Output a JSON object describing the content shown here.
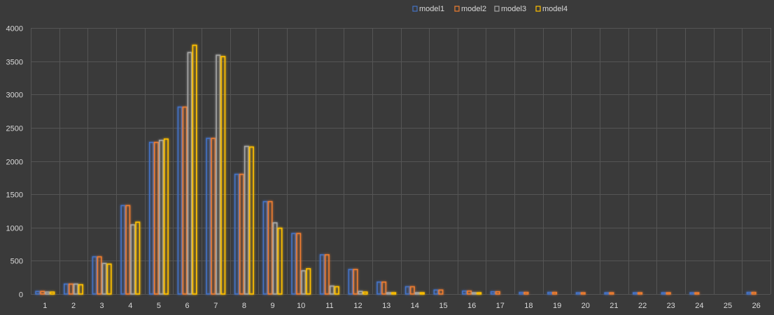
{
  "chart_data": {
    "type": "bar",
    "categories": [
      "1",
      "2",
      "3",
      "4",
      "5",
      "6",
      "7",
      "8",
      "9",
      "10",
      "11",
      "12",
      "13",
      "14",
      "15",
      "16",
      "17",
      "18",
      "19",
      "20",
      "21",
      "22",
      "23",
      "24",
      "25",
      "26"
    ],
    "ylim": [
      0,
      4000
    ],
    "yticks": [
      0,
      500,
      1000,
      1500,
      2000,
      2500,
      3000,
      3500,
      4000
    ],
    "grid": true,
    "legend_position": "top-center",
    "series": [
      {
        "name": "model1",
        "color": "#4472c4",
        "values": [
          40,
          150,
          560,
          1330,
          2280,
          2810,
          2340,
          1800,
          1390,
          910,
          590,
          370,
          180,
          110,
          60,
          45,
          35,
          25,
          25,
          20,
          20,
          20,
          20,
          20,
          0,
          25
        ]
      },
      {
        "name": "model2",
        "color": "#ed7d31",
        "values": [
          40,
          150,
          560,
          1330,
          2280,
          2810,
          2340,
          1800,
          1390,
          910,
          590,
          370,
          180,
          110,
          60,
          45,
          35,
          25,
          25,
          20,
          20,
          20,
          20,
          20,
          0,
          25
        ]
      },
      {
        "name": "model3",
        "color": "#a5a5a5",
        "values": [
          30,
          150,
          460,
          1040,
          2310,
          3630,
          3590,
          2220,
          1070,
          350,
          120,
          40,
          20,
          20,
          0,
          20,
          0,
          0,
          0,
          0,
          0,
          0,
          0,
          0,
          0,
          0
        ]
      },
      {
        "name": "model4",
        "color": "#ffc000",
        "values": [
          30,
          140,
          450,
          1080,
          2330,
          3740,
          3570,
          2210,
          990,
          380,
          110,
          30,
          20,
          20,
          0,
          20,
          0,
          0,
          0,
          0,
          0,
          0,
          0,
          0,
          0,
          0
        ]
      }
    ]
  }
}
